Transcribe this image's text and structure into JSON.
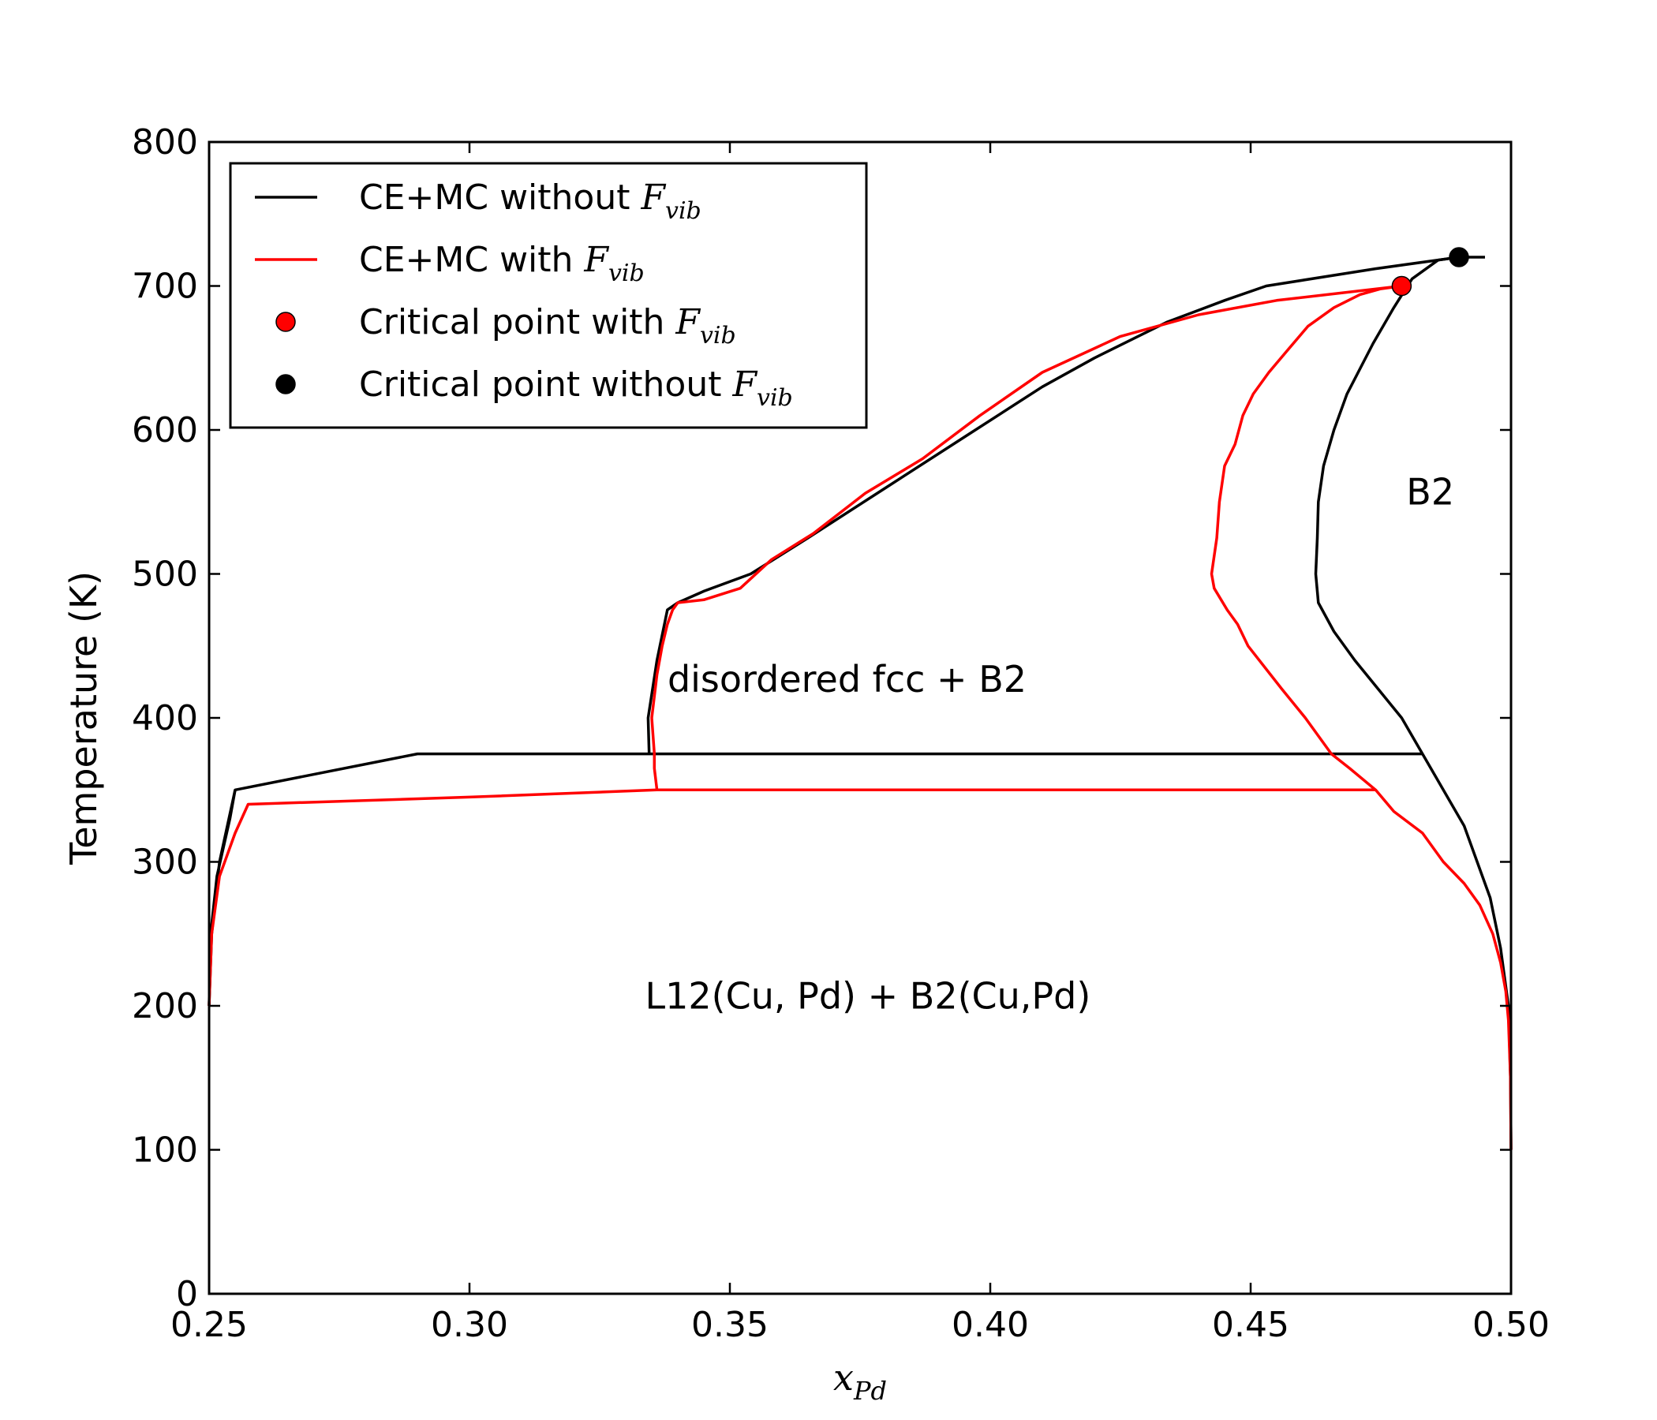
{
  "chart_data": {
    "type": "line",
    "xlabel": {
      "base": "x",
      "sub": "Pd"
    },
    "ylabel": "Temperature (K)",
    "xlim": [
      0.25,
      0.5
    ],
    "ylim": [
      0,
      800
    ],
    "x_ticks": [
      "0.25",
      "0.30",
      "0.35",
      "0.40",
      "0.45",
      "0.50"
    ],
    "y_ticks": [
      "0",
      "100",
      "200",
      "300",
      "400",
      "500",
      "600",
      "700",
      "800"
    ],
    "grid": false,
    "legend_position": "top-left",
    "legend": [
      {
        "text": "CE+MC without ",
        "math": "F",
        "math_sub": "vib",
        "marker": "line",
        "color": "#000000"
      },
      {
        "text": "CE+MC with ",
        "math": "F",
        "math_sub": "vib",
        "marker": "line",
        "color": "#ff0000"
      },
      {
        "text": "Critical point with ",
        "math": "F",
        "math_sub": "vib",
        "marker": "dot",
        "color": "#ff0000"
      },
      {
        "text": "Critical point without ",
        "math": "F",
        "math_sub": "vib",
        "marker": "dot",
        "color": "#000000"
      }
    ],
    "series": [
      {
        "color": "#000000",
        "segments": [
          [
            [
              0.25,
              200
            ],
            [
              0.2505,
              250
            ],
            [
              0.252,
              300
            ],
            [
              0.255,
              350
            ],
            [
              0.29,
              375
            ],
            [
              0.483,
              375
            ]
          ],
          [
            [
              0.25,
              200
            ],
            [
              0.2503,
              250
            ],
            [
              0.2515,
              290
            ],
            [
              0.254,
              330
            ],
            [
              0.255,
              350
            ]
          ],
          [
            [
              0.3345,
              375
            ],
            [
              0.3343,
              400
            ],
            [
              0.336,
              440
            ],
            [
              0.338,
              475
            ],
            [
              0.34,
              480
            ],
            [
              0.345,
              488
            ],
            [
              0.354,
              500
            ],
            [
              0.365,
              525
            ],
            [
              0.38,
              560
            ],
            [
              0.395,
              595
            ],
            [
              0.41,
              630
            ],
            [
              0.42,
              650
            ],
            [
              0.434,
              675
            ],
            [
              0.445,
              690
            ],
            [
              0.453,
              700
            ],
            [
              0.474,
              712
            ],
            [
              0.49,
              720
            ],
            [
              0.495,
              720
            ]
          ],
          [
            [
              0.5,
              100
            ],
            [
              0.4999,
              150
            ],
            [
              0.4995,
              200
            ],
            [
              0.498,
              240
            ],
            [
              0.496,
              275
            ],
            [
              0.4935,
              300
            ],
            [
              0.491,
              325
            ],
            [
              0.487,
              350
            ],
            [
              0.483,
              375
            ],
            [
              0.479,
              400
            ],
            [
              0.47,
              440
            ],
            [
              0.466,
              460
            ],
            [
              0.463,
              480
            ],
            [
              0.4625,
              500
            ],
            [
              0.4628,
              525
            ],
            [
              0.463,
              550
            ],
            [
              0.464,
              575
            ],
            [
              0.466,
              600
            ],
            [
              0.4685,
              625
            ],
            [
              0.4735,
              660
            ],
            [
              0.4775,
              685
            ],
            [
              0.481,
              705
            ],
            [
              0.486,
              718
            ],
            [
              0.49,
              720
            ]
          ]
        ]
      },
      {
        "color": "#ff0000",
        "segments": [
          [
            [
              0.25,
              200
            ],
            [
              0.2505,
              250
            ],
            [
              0.252,
              290
            ],
            [
              0.255,
              320
            ],
            [
              0.2575,
              340
            ],
            [
              0.3,
              345
            ],
            [
              0.336,
              350
            ],
            [
              0.474,
              350
            ]
          ],
          [
            [
              0.336,
              350
            ],
            [
              0.3355,
              365
            ],
            [
              0.3355,
              375
            ],
            [
              0.335,
              400
            ],
            [
              0.336,
              430
            ],
            [
              0.337,
              450
            ],
            [
              0.338,
              465
            ],
            [
              0.339,
              475
            ],
            [
              0.34,
              480
            ],
            [
              0.345,
              482
            ],
            [
              0.352,
              490
            ],
            [
              0.358,
              510
            ],
            [
              0.366,
              528
            ],
            [
              0.376,
              556
            ],
            [
              0.387,
              580
            ],
            [
              0.398,
              610
            ],
            [
              0.41,
              640
            ],
            [
              0.425,
              665
            ],
            [
              0.44,
              680
            ],
            [
              0.455,
              690
            ],
            [
              0.479,
              700
            ]
          ],
          [
            [
              0.5,
              100
            ],
            [
              0.4999,
              150
            ],
            [
              0.4995,
              190
            ],
            [
              0.499,
              210
            ],
            [
              0.498,
              230
            ],
            [
              0.4965,
              250
            ],
            [
              0.494,
              270
            ],
            [
              0.491,
              285
            ],
            [
              0.487,
              300
            ],
            [
              0.483,
              320
            ],
            [
              0.4775,
              335
            ],
            [
              0.474,
              350
            ],
            [
              0.469,
              365
            ],
            [
              0.4655,
              375
            ],
            [
              0.4605,
              400
            ],
            [
              0.456,
              420
            ],
            [
              0.4495,
              450
            ],
            [
              0.4475,
              465
            ],
            [
              0.4455,
              475
            ],
            [
              0.443,
              490
            ],
            [
              0.4425,
              500
            ],
            [
              0.4435,
              525
            ],
            [
              0.444,
              550
            ],
            [
              0.445,
              575
            ],
            [
              0.447,
              590
            ],
            [
              0.4485,
              610
            ],
            [
              0.4505,
              625
            ],
            [
              0.4535,
              640
            ],
            [
              0.457,
              655
            ],
            [
              0.461,
              672
            ],
            [
              0.466,
              685
            ],
            [
              0.471,
              694
            ],
            [
              0.475,
              698
            ],
            [
              0.479,
              700
            ]
          ]
        ]
      }
    ],
    "points": [
      {
        "x": 0.479,
        "y": 700,
        "color": "#ff0000"
      },
      {
        "x": 0.49,
        "y": 720,
        "color": "#000000"
      }
    ],
    "annotations": [
      {
        "text": "disordered fcc + B2",
        "x": 0.3725,
        "y": 425
      },
      {
        "text": "L12(Cu, Pd) + B2(Cu,Pd)",
        "x": 0.3765,
        "y": 205
      },
      {
        "text": "B2",
        "x": 0.4845,
        "y": 555
      }
    ]
  }
}
